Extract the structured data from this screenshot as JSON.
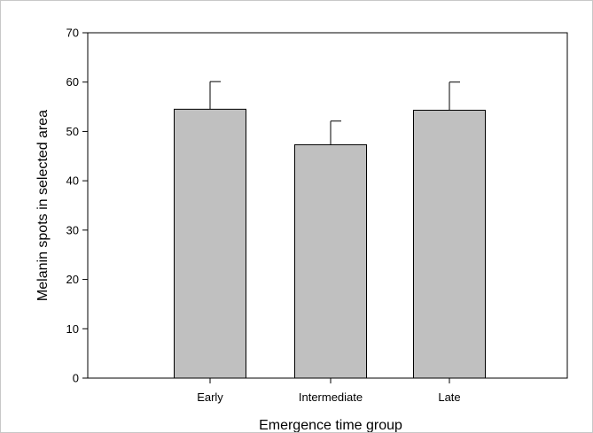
{
  "chart_data": {
    "type": "bar",
    "title": "",
    "xlabel": "Emergence time group",
    "ylabel": "Melanin spots in selected area",
    "categories": [
      "Early",
      "Intermediate",
      "Late"
    ],
    "values": [
      54.5,
      47.3,
      54.3
    ],
    "errors": [
      5.6,
      4.8,
      5.7
    ],
    "ylim": [
      0,
      70
    ],
    "yticks": [
      0,
      10,
      20,
      30,
      40,
      50,
      60,
      70
    ],
    "ytick_labels": [
      "0",
      "10",
      "20",
      "30",
      "40",
      "50",
      "60",
      "70"
    ],
    "grid": false,
    "legend": "none",
    "colors": {
      "bar_fill": "#c0c0c0",
      "bar_stroke": "#000000",
      "axis": "#000000"
    }
  }
}
